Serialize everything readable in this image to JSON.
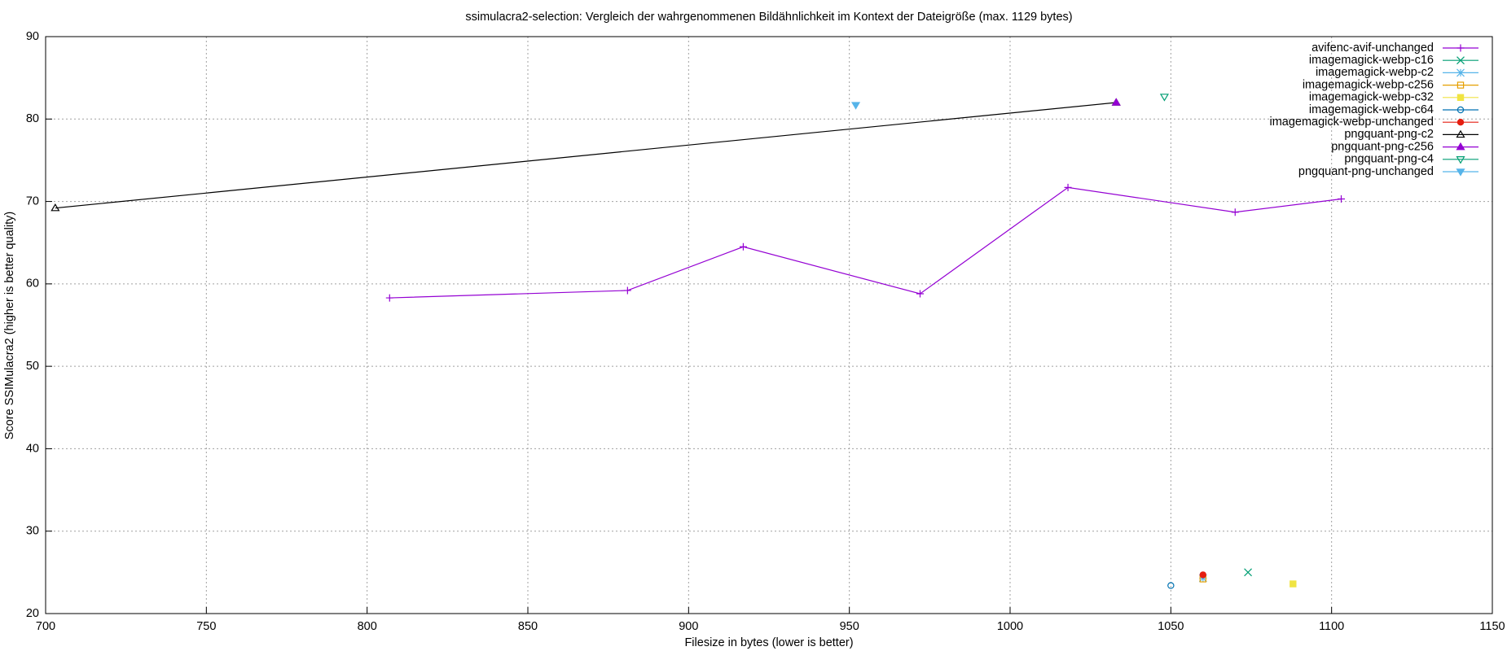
{
  "chart_data": {
    "type": "line",
    "title": "ssimulacra2-selection: Vergleich der wahrgenommenen Bildähnlichkeit im Kontext der Dateigröße (max. 1129 bytes)",
    "x_label": "Filesize in bytes (lower is better)",
    "y_label": "Score SSIMulacra2 (higher is better quality)",
    "xlim": [
      700,
      1150
    ],
    "xticks": [
      700,
      750,
      800,
      850,
      900,
      950,
      1000,
      1050,
      1100,
      1150
    ],
    "ylim": [
      20,
      90
    ],
    "yticks": [
      20,
      30,
      40,
      50,
      60,
      70,
      80,
      90
    ],
    "grid": true,
    "legend": "top-right",
    "series": [
      {
        "name": "avifenc-avif-unchanged",
        "color": "#9400d3",
        "marker": "plus",
        "x": [
          807,
          881,
          917,
          972,
          1018,
          1070,
          1103
        ],
        "values": [
          58.3,
          59.2,
          64.5,
          58.8,
          71.7,
          68.7,
          70.3
        ]
      },
      {
        "name": "imagemagick-webp-c16",
        "color": "#009e73",
        "marker": "cross",
        "x": [
          1074
        ],
        "values": [
          25.0
        ]
      },
      {
        "name": "imagemagick-webp-c2",
        "color": "#56b4e9",
        "marker": "star",
        "x": [
          1060
        ],
        "values": [
          24.3
        ]
      },
      {
        "name": "imagemagick-webp-c256",
        "color": "#e69f00",
        "marker": "square-open",
        "x": [
          1060
        ],
        "values": [
          24.2
        ]
      },
      {
        "name": "imagemagick-webp-c32",
        "color": "#f0e442",
        "marker": "square-filled",
        "x": [
          1088
        ],
        "values": [
          23.6
        ]
      },
      {
        "name": "imagemagick-webp-c64",
        "color": "#0072b2",
        "marker": "circle-open",
        "x": [
          1050
        ],
        "values": [
          23.4
        ]
      },
      {
        "name": "imagemagick-webp-unchanged",
        "color": "#e51e10",
        "marker": "circle-filled",
        "x": [
          1060
        ],
        "values": [
          24.7
        ]
      },
      {
        "name": "pngquant-png-c2",
        "color": "#000000",
        "marker": "triangle-open",
        "x": [
          703,
          1033
        ],
        "values": [
          69.2,
          82.0
        ]
      },
      {
        "name": "pngquant-png-c256",
        "color": "#9400d3",
        "marker": "triangle-filled",
        "x": [
          1033
        ],
        "values": [
          82.0
        ]
      },
      {
        "name": "pngquant-png-c4",
        "color": "#009e73",
        "marker": "triangle-down-open",
        "x": [
          1048
        ],
        "values": [
          82.7
        ]
      },
      {
        "name": "pngquant-png-unchanged",
        "color": "#56b4e9",
        "marker": "triangle-down-filled",
        "x": [
          952
        ],
        "values": [
          81.7
        ]
      }
    ]
  }
}
